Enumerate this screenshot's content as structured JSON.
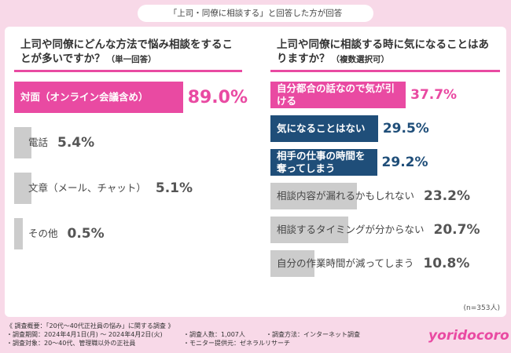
{
  "header": "「上司・同僚に相談する」と回答した方が回答",
  "chart_data": [
    {
      "type": "bar",
      "title": "上司や同僚にどんな方法で悩み相談をすることが多いですか？",
      "subtitle": "（単一回答）",
      "categories": [
        "対面（オンライン会議含め）",
        "電話",
        "文章（メール、チャット）",
        "その他"
      ],
      "values": [
        89.0,
        5.4,
        5.1,
        0.5
      ],
      "value_labels": [
        "89.0%",
        "5.4%",
        "5.1%",
        "0.5%"
      ],
      "colors": [
        "#e94aa2",
        "#cccccc",
        "#cccccc",
        "#cccccc"
      ]
    },
    {
      "type": "bar",
      "title": "上司や同僚に相談する時に気になることはありますか？",
      "subtitle": "（複数選択可）",
      "categories": [
        "自分都合の話なので気が引ける",
        "気になることはない",
        "相手の仕事の時間を奪ってしまう",
        "相談内容が漏れるかもしれない",
        "相談するタイミングが分からない",
        "自分の作業時間が減ってしまう"
      ],
      "values": [
        37.7,
        29.5,
        29.2,
        23.2,
        20.7,
        10.8
      ],
      "value_labels": [
        "37.7%",
        "29.5%",
        "29.2%",
        "23.2%",
        "20.7%",
        "10.8%"
      ],
      "colors": [
        "#e94aa2",
        "#1f4e79",
        "#1f4e79",
        "#cccccc",
        "#cccccc",
        "#cccccc"
      ],
      "note": "(n=353人)"
    }
  ],
  "footer": {
    "lines": [
      "《 調査概要：「20代〜40代正社員の悩み」に関する調査 》",
      "・調査期間：2024年4月1日(月) 〜 2024年4月2日(火)",
      "・調査対象：20〜40代、管理職以外の正社員",
      "・調査人数：1,007人",
      "・モニター提供元：ゼネラルリサーチ",
      "・調査方法：インターネット調査"
    ],
    "logo": "yoridocoro"
  }
}
